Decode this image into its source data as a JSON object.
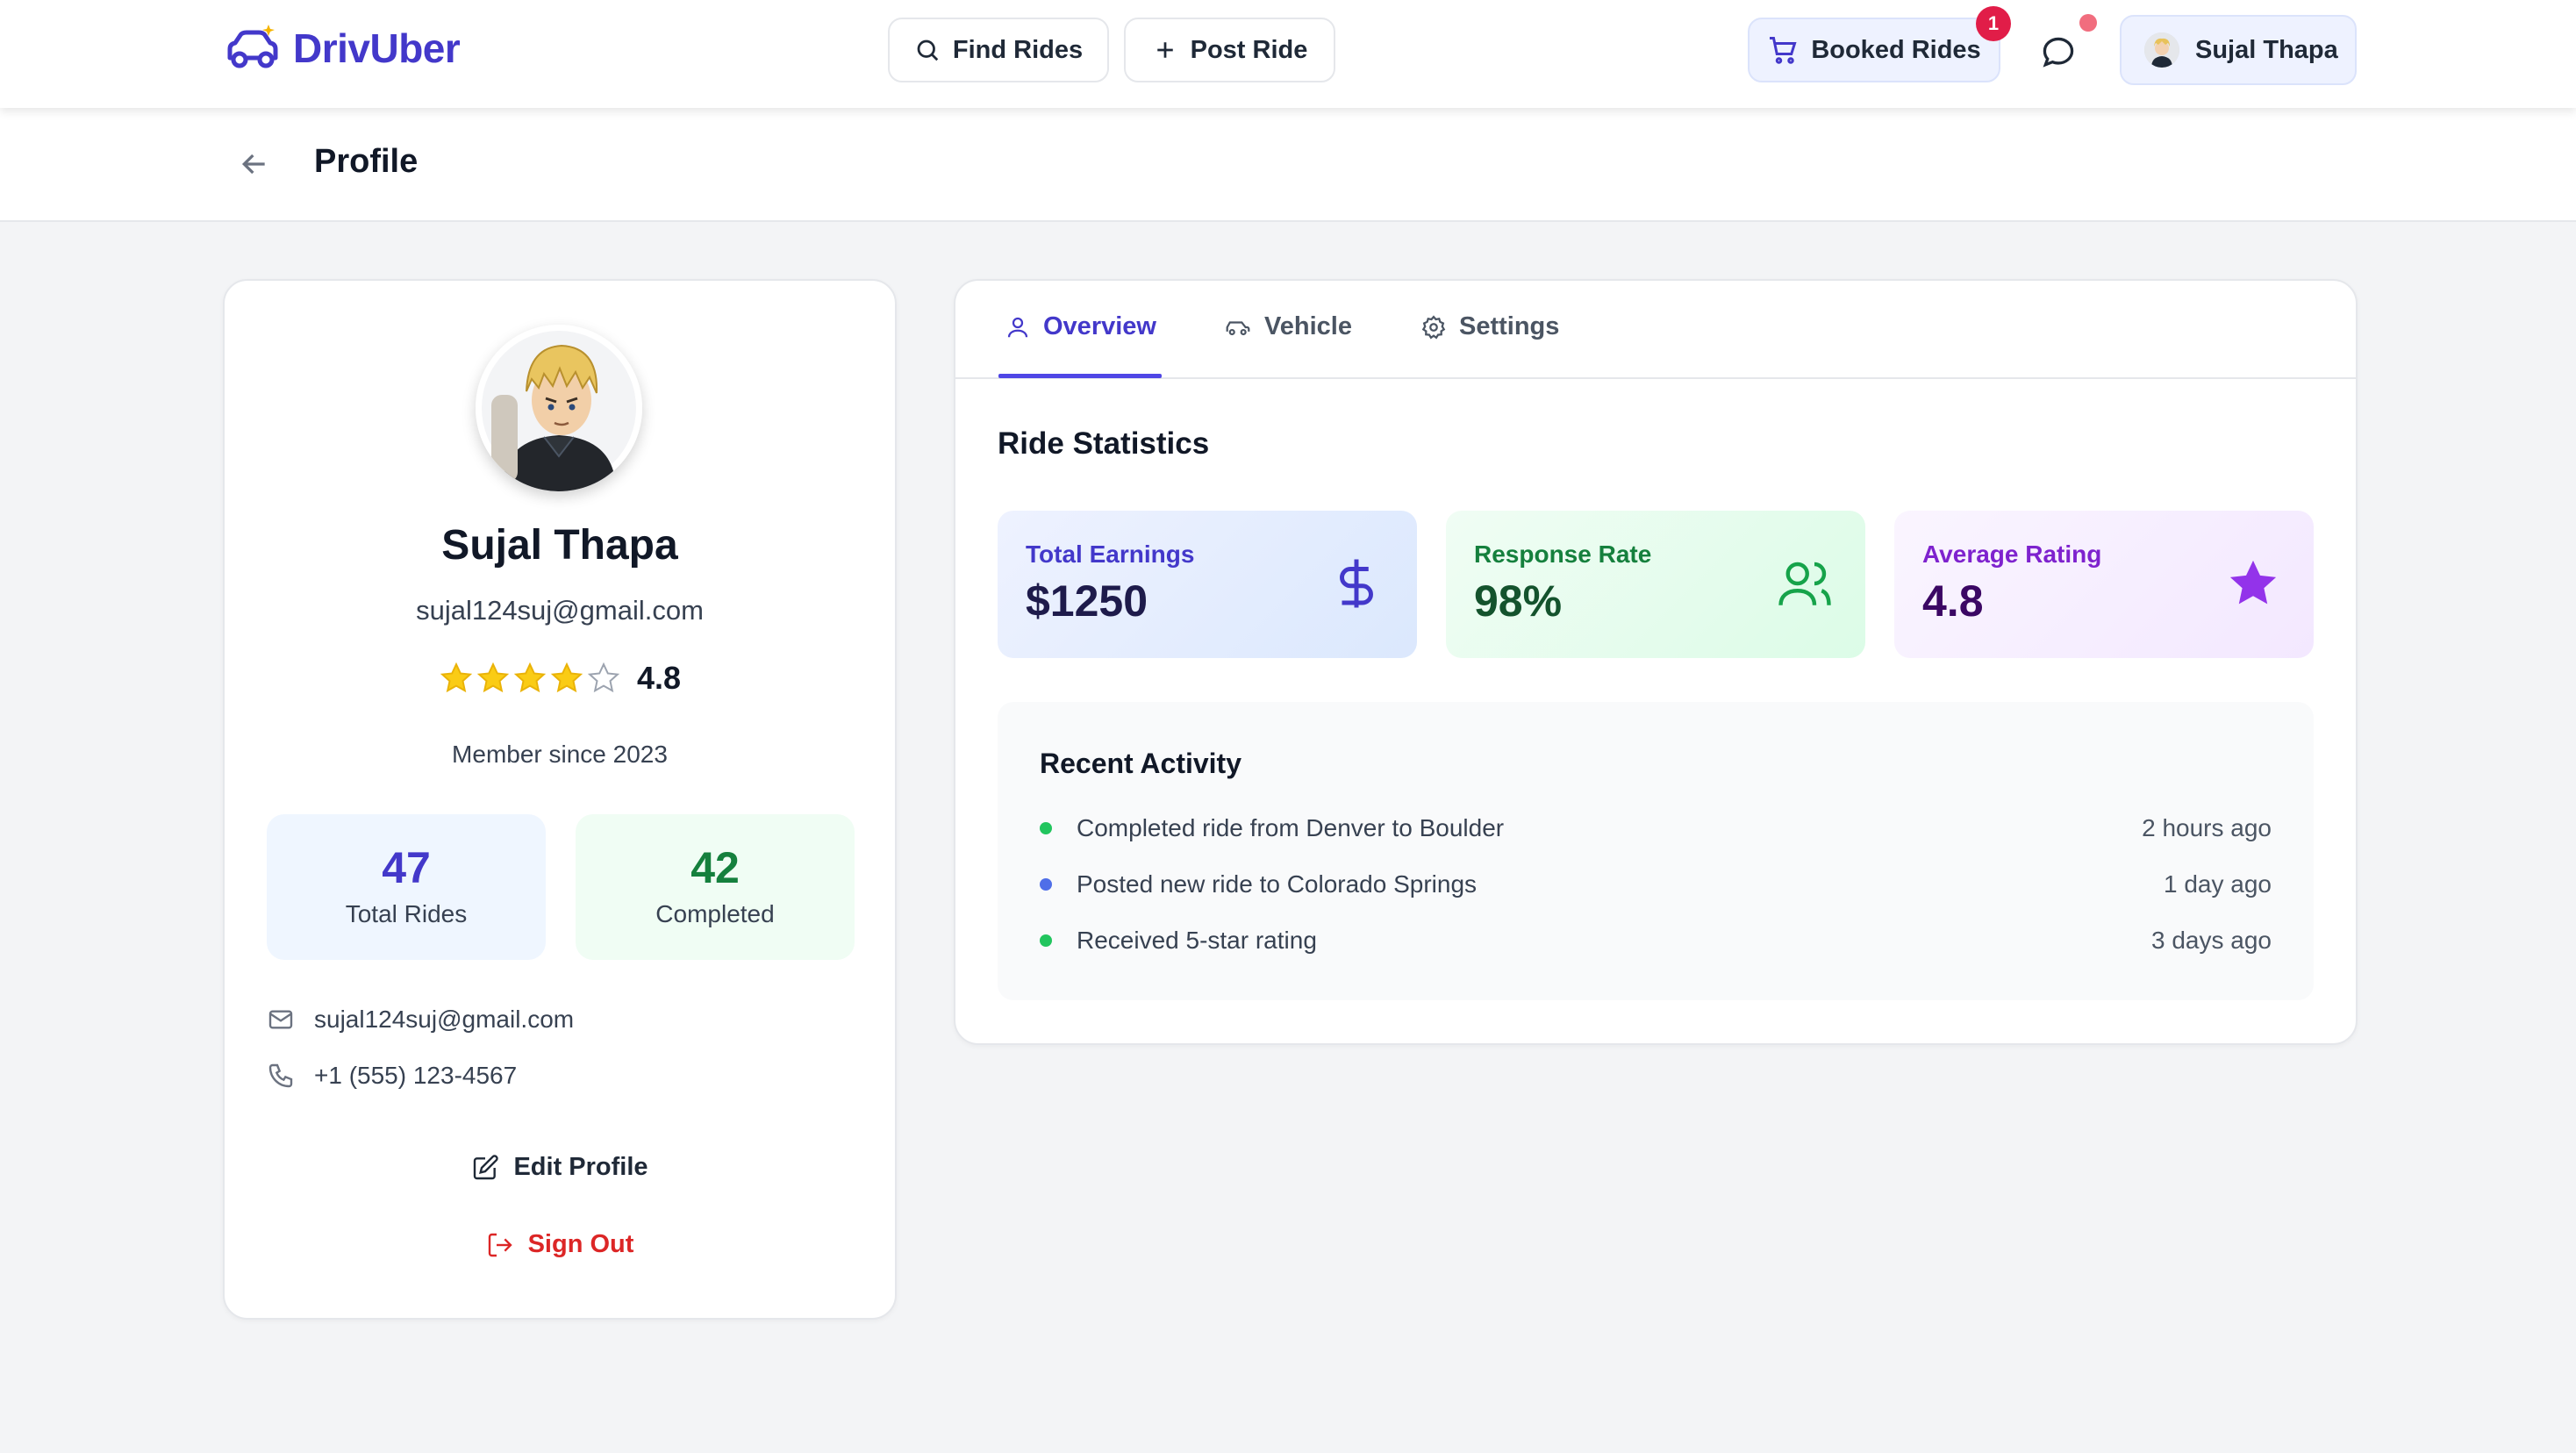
{
  "app": {
    "name": "DrivUber"
  },
  "nav": {
    "find_rides": "Find Rides",
    "post_ride": "Post Ride",
    "booked_rides": "Booked Rides",
    "booked_count": "1",
    "user_name": "Sujal Thapa"
  },
  "page": {
    "title": "Profile"
  },
  "profile": {
    "name": "Sujal Thapa",
    "email": "sujal124suj@gmail.com",
    "rating": "4.8",
    "rating_value": 4.0,
    "member_since": "Member since 2023",
    "stats": [
      {
        "value": "47",
        "label": "Total Rides"
      },
      {
        "value": "42",
        "label": "Completed"
      }
    ],
    "contact_email": "sujal124suj@gmail.com",
    "contact_phone": "+1 (555) 123-4567",
    "edit_label": "Edit Profile",
    "signout_label": "Sign Out"
  },
  "tabs": [
    {
      "label": "Overview",
      "icon": "user-icon",
      "active": true
    },
    {
      "label": "Vehicle",
      "icon": "car-icon",
      "active": false
    },
    {
      "label": "Settings",
      "icon": "gear-icon",
      "active": false
    }
  ],
  "stats_section": {
    "title": "Ride Statistics",
    "cards": [
      {
        "label": "Total Earnings",
        "value": "$1250",
        "icon": "dollar-icon"
      },
      {
        "label": "Response Rate",
        "value": "98%",
        "icon": "users-icon"
      },
      {
        "label": "Average Rating",
        "value": "4.8",
        "icon": "star-icon"
      }
    ]
  },
  "activity": {
    "title": "Recent Activity",
    "items": [
      {
        "text": "Completed ride from Denver to Boulder",
        "time": "2 hours ago",
        "color": "#22c55e"
      },
      {
        "text": "Posted new ride to Colorado Springs",
        "time": "1 day ago",
        "color": "#4f6ee8"
      },
      {
        "text": "Received 5-star rating",
        "time": "3 days ago",
        "color": "#22c55e"
      }
    ]
  },
  "colors": {
    "brand": "#4338ca",
    "danger": "#dc2626",
    "success": "#15803d",
    "purple": "#7e22ce"
  }
}
